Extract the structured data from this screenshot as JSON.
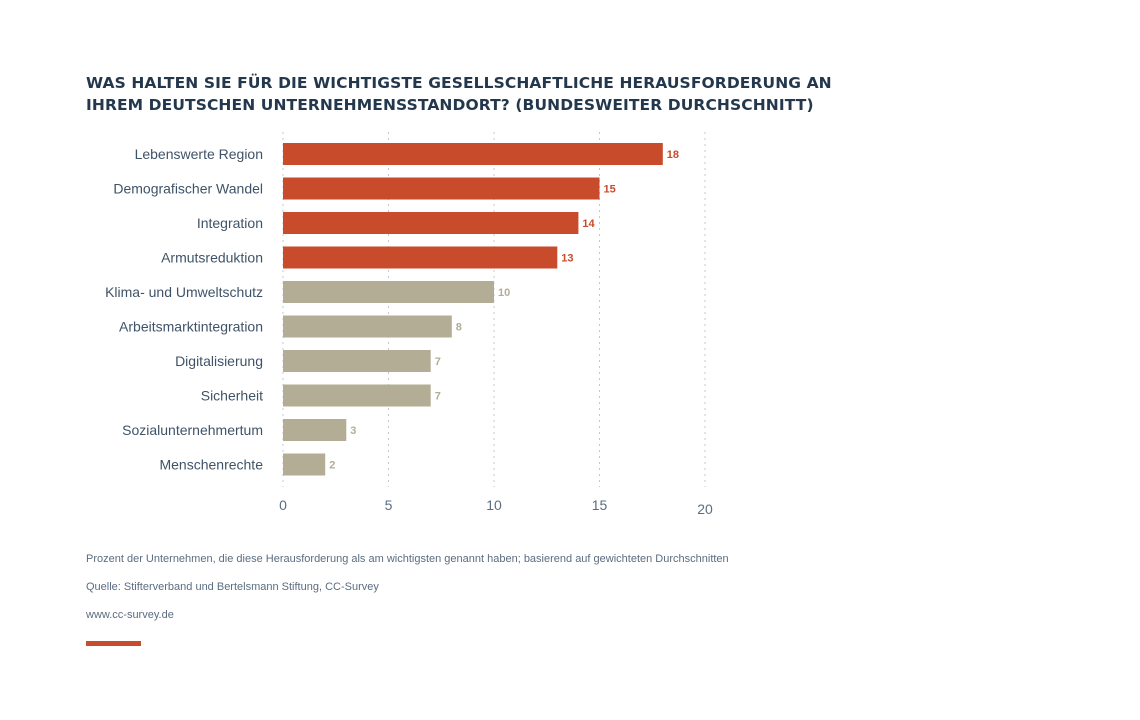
{
  "title_lines": [
    "WAS HALTEN SIE FÜR DIE WICHTIGSTE GESELLSCHAFTLICHE HERAUSFORDERUNG AN",
    "IHREM DEUTSCHEN UNTERNEHMENSSTANDORT? (BUNDESWEITER DURCHSCHNITT)"
  ],
  "chart_data": {
    "type": "bar",
    "orientation": "horizontal",
    "title": "WAS HALTEN SIE FÜR DIE WICHTIGSTE GESELLSCHAFTLICHE HERAUSFORDERUNG AN IHREM DEUTSCHEN UNTERNEHMENSSTANDORT? (BUNDESWEITER DURCHSCHNITT)",
    "categories": [
      "Lebenswerte Region",
      "Demografischer Wandel",
      "Integration",
      "Armutsreduktion",
      "Klima- und Umweltschutz",
      "Arbeitsmarktintegration",
      "Digitalisierung",
      "Sicherheit",
      "Sozialunternehmertum",
      "Menschenrechte"
    ],
    "values": [
      18,
      15,
      14,
      13,
      10,
      8,
      7,
      7,
      3,
      2
    ],
    "highlighted": [
      true,
      true,
      true,
      true,
      false,
      false,
      false,
      false,
      false,
      false
    ],
    "xlim": [
      0,
      20
    ],
    "xticks": [
      0,
      5,
      10,
      15,
      20
    ],
    "xlabel": "",
    "ylabel": "",
    "grid": "vertical dotted"
  },
  "colors": {
    "highlight": "#c84b2b",
    "default": "#b3ad96",
    "title": "#23384d",
    "text": "#3f5368",
    "grid": "#c5c9cf",
    "accent": "#c84b2b"
  },
  "notes": {
    "description": "Prozent der Unternehmen, die diese Herausforderung als am wichtigsten genannt haben; basierend auf gewichteten Durchschnitten",
    "source": "Quelle: Stifterverband und Bertelsmann Stiftung, CC-Survey",
    "url": "www.cc-survey.de"
  }
}
